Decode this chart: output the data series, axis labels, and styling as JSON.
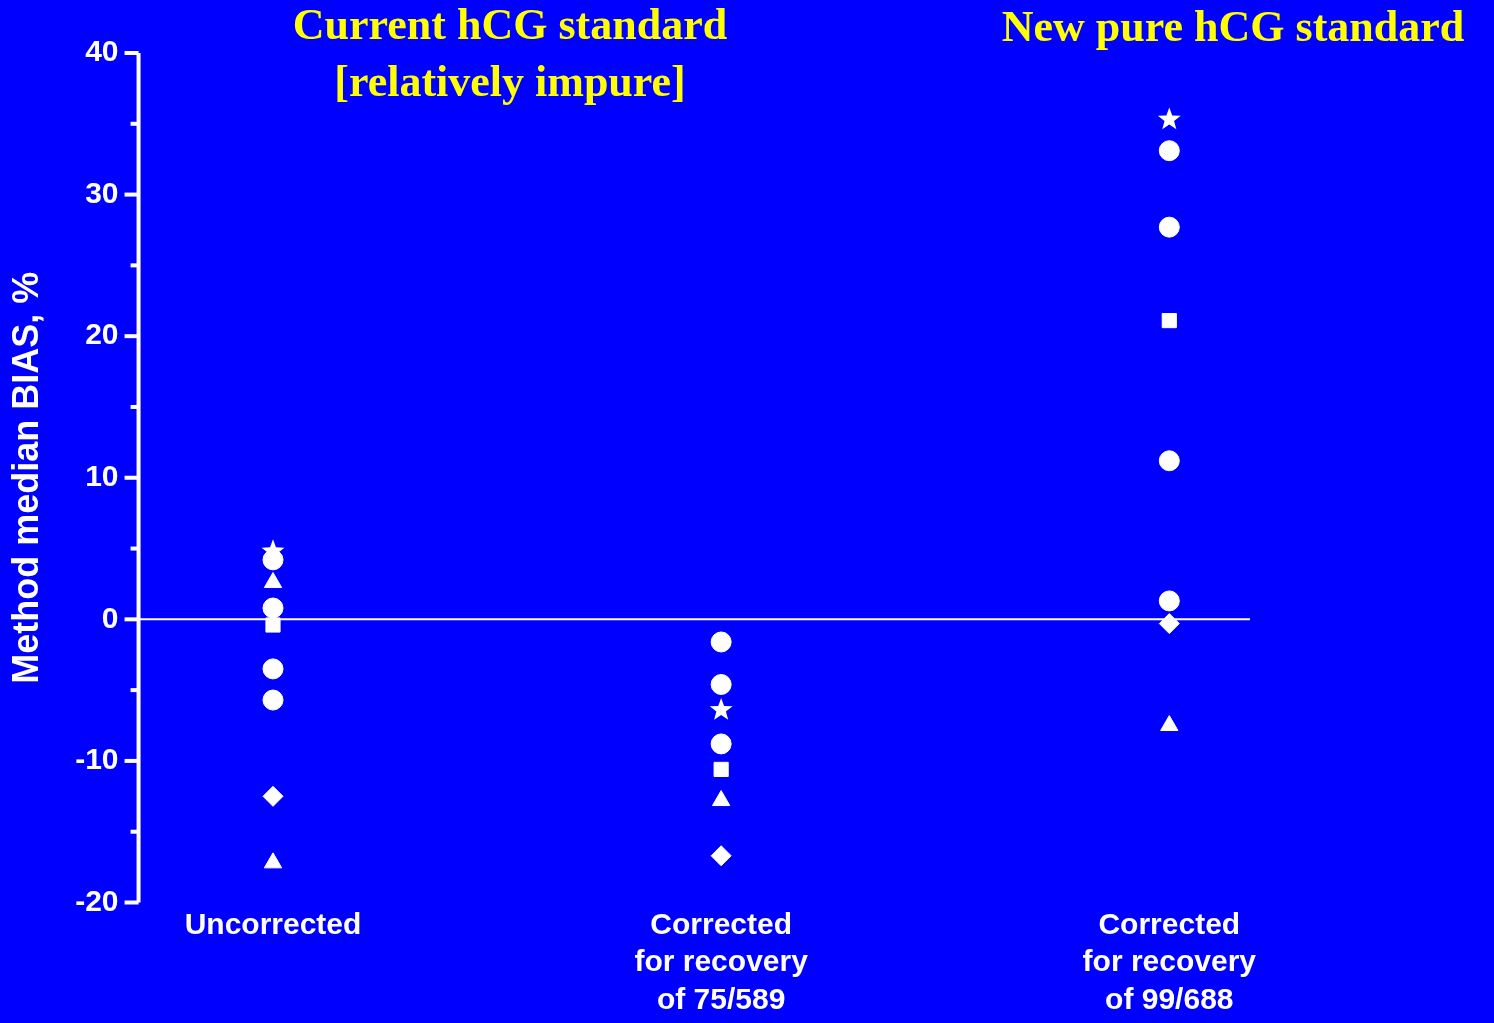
{
  "chart_data": {
    "type": "scatter",
    "ylabel": "Method median BIAS, %",
    "categories": [
      "Uncorrected",
      "Corrected\nfor recovery\nof 75/589",
      "Corrected\nfor recovery\nof 99/688"
    ],
    "annotations": [
      "Current hCG standard\n[relatively impure]",
      "New pure hCG standard"
    ],
    "series": [
      {
        "color": "#ffffff",
        "marker": "star",
        "values": [
          4.8,
          -6.4,
          35.3
        ]
      },
      {
        "color": "#ffffff",
        "marker": "circle",
        "values": [
          4.2,
          -8.8,
          27.7
        ]
      },
      {
        "color": "#ffffff",
        "marker": "triangle",
        "values": [
          2.6,
          null,
          null
        ]
      },
      {
        "color": "#ffffff",
        "marker": "circle",
        "values": [
          0.8,
          null,
          null
        ]
      },
      {
        "color": "#ffffff",
        "marker": "square",
        "values": [
          -0.4,
          -10.6,
          21.1
        ]
      },
      {
        "color": "#ffffff",
        "marker": "circle",
        "values": [
          -3.5,
          null,
          1.3
        ]
      },
      {
        "color": "#ffffff",
        "marker": "circle",
        "values": [
          -5.7,
          -4.6,
          33.1
        ]
      },
      {
        "color": "#ffffff",
        "marker": "circle",
        "values": [
          null,
          -1.6,
          11.2
        ]
      },
      {
        "color": "#ffffff",
        "marker": "diamond",
        "values": [
          -12.5,
          -16.7,
          -0.3
        ]
      },
      {
        "color": "#ffffff",
        "marker": "triangle",
        "values": [
          -17.2,
          -12.8,
          -7.5
        ]
      }
    ],
    "ref_lines": [
      {
        "axis": "y",
        "value": 0,
        "color": "#ffffff"
      }
    ],
    "ylim": [
      -20,
      40
    ],
    "yticks": [
      -20,
      {
        "value": -15,
        "label": null
      },
      -10,
      {
        "value": -5,
        "label": null
      },
      0,
      {
        "value": 5,
        "label": null
      },
      10,
      {
        "value": 15,
        "label": null
      },
      20,
      {
        "value": 25,
        "label": null
      },
      30,
      {
        "value": 35,
        "label": null
      },
      40
    ],
    "grid": false,
    "legend": false
  }
}
